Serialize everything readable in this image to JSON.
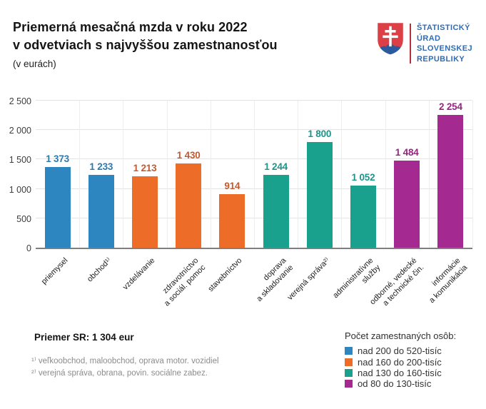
{
  "header": {
    "title_line1": "Priemerná mesačná mzda v roku 2022",
    "title_line2": "v odvetviach s najvyššou zamestnanosťou",
    "subtitle": "(v eurách)",
    "logo": {
      "org_lines": [
        "ŠTATISTICKÝ",
        "ÚRAD",
        "SLOVENSKEJ",
        "REPUBLIKY"
      ],
      "text_color": "#2f6cb3",
      "shield_red": "#dc3f45",
      "shield_blue": "#2c5a9e",
      "divider_color": "#b5323c"
    }
  },
  "chart_data": {
    "type": "bar",
    "title": "Priemerná mesačná mzda v roku 2022 v odvetviach s najvyššou zamestnanosťou",
    "ylabel": "(v eurách)",
    "ylim": [
      0,
      2500
    ],
    "grid": true,
    "legend_position": "bottom-right",
    "ytick_values": [
      0,
      500,
      1000,
      1500,
      2000,
      2500
    ],
    "ytick_labels": [
      "0",
      "500",
      "1 000",
      "1 500",
      "2 000",
      "2 500"
    ],
    "categories": [
      "priemysel",
      "obchod¹⁾",
      "vzdelávanie",
      "zdravotníctvo a sociál. pomoc",
      "stavebníctvo",
      "doprava a skladovanie",
      "verejná správa²⁾",
      "administratívne služby",
      "odborné, vedecké a technické čin.",
      "informácie a komunikácia"
    ],
    "category_lines": [
      [
        "priemysel"
      ],
      [
        "obchod¹⁾"
      ],
      [
        "vzdelávanie"
      ],
      [
        "zdravotníctvo",
        "a sociál. pomoc"
      ],
      [
        "stavebníctvo"
      ],
      [
        "doprava",
        "a skladovanie"
      ],
      [
        "verejná správa²⁾"
      ],
      [
        "administratívne",
        "služby"
      ],
      [
        "odborné, vedecké",
        "a technické čin."
      ],
      [
        "informácie",
        "a komunikácia"
      ]
    ],
    "values": [
      1373,
      1233,
      1213,
      1430,
      914,
      1244,
      1800,
      1052,
      1484,
      2254
    ],
    "value_labels": [
      "1 373",
      "1 233",
      "1 213",
      "1 430",
      "914",
      "1 244",
      "1 800",
      "1 052",
      "1 484",
      "2 254"
    ],
    "bar_colors": [
      "#2e86c1",
      "#2e86c1",
      "#ed6c28",
      "#ed6c28",
      "#ed6c28",
      "#1aa18e",
      "#1aa18e",
      "#1aa18e",
      "#a42a92",
      "#a42a92"
    ],
    "value_label_colors": [
      "#2b79af",
      "#2b79af",
      "#c05a33",
      "#c05a33",
      "#c05a33",
      "#1a968a",
      "#1a968a",
      "#1a968a",
      "#992383",
      "#992383"
    ]
  },
  "footer": {
    "average_label": "Priemer SR: 1 304 eur",
    "footnotes": [
      "¹⁾ veľkoobchod, maloobchod, oprava motor. vozidiel",
      "²⁾ verejná správa, obrana, povin. sociálne zabez."
    ],
    "legend": {
      "title": "Počet zamestnaných osôb:",
      "items": [
        {
          "label": "nad 200 do 520-tisíc",
          "color": "#2e86c1"
        },
        {
          "label": "nad 160 do 200-tisíc",
          "color": "#ed6c28"
        },
        {
          "label": "nad 130 do 160-tisíc",
          "color": "#1aa18e"
        },
        {
          "label": "od 80 do 130-tisíc",
          "color": "#a42a92"
        }
      ]
    }
  }
}
